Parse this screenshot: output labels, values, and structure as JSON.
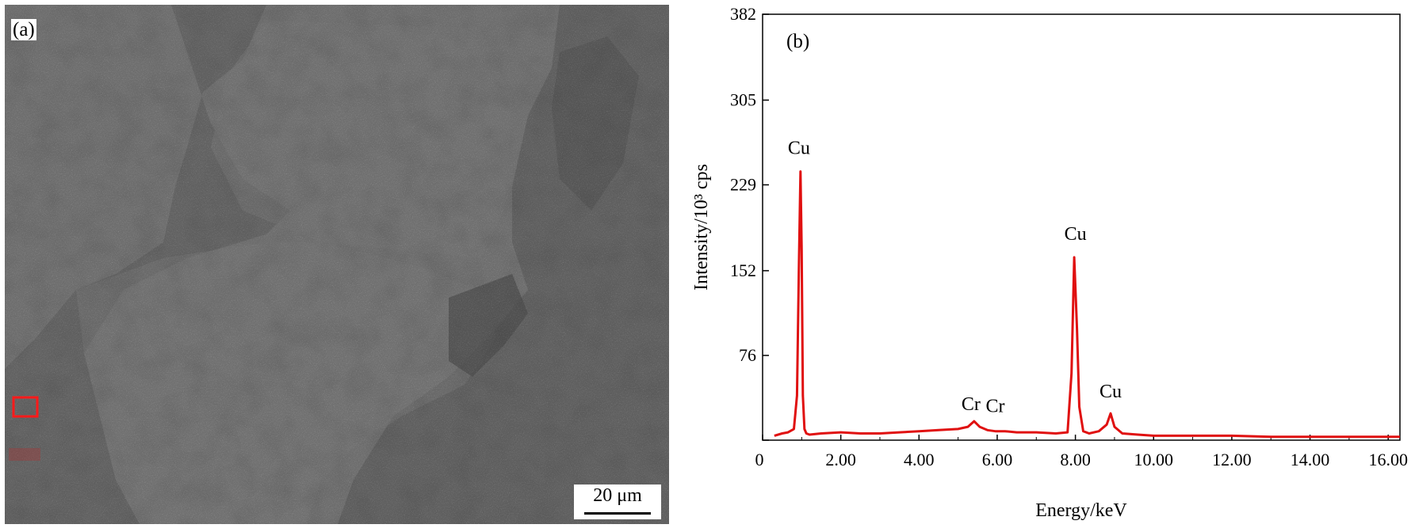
{
  "panel_a": {
    "label": "(a)",
    "scale_bar_text": "20 μm"
  },
  "colors": {
    "spectrum": "#e01010",
    "marker": "#ff1a1a",
    "sem_base": "#6b6b6b"
  },
  "chart_data": {
    "type": "line",
    "panel_label": "(b)",
    "title": "",
    "xlabel": "Energy/keV",
    "ylabel": "Intensity/10³ cps",
    "xlim": [
      0,
      16.3
    ],
    "ylim": [
      0,
      382
    ],
    "x_ticks": [
      0,
      2,
      4,
      6,
      8,
      10,
      12,
      14,
      16
    ],
    "x_tick_labels": [
      "0",
      "2.00",
      "4.00",
      "6.00",
      "8.00",
      "10.00",
      "12.00",
      "14.00",
      "16.00"
    ],
    "y_ticks": [
      0,
      76,
      152,
      229,
      305,
      382
    ],
    "y_tick_labels": [
      "0",
      "76",
      "152",
      "229",
      "305",
      "382"
    ],
    "grid": false,
    "series": [
      {
        "x": [
          0.3,
          0.5,
          0.65,
          0.8,
          0.88,
          0.93,
          0.97,
          1.0,
          1.03,
          1.07,
          1.12,
          1.2,
          1.5,
          2.0,
          2.5,
          3.0,
          3.5,
          4.0,
          4.5,
          5.0,
          5.25,
          5.41,
          5.55,
          5.75,
          5.95,
          6.2,
          6.5,
          7.0,
          7.5,
          7.8,
          7.9,
          7.97,
          8.04,
          8.1,
          8.2,
          8.35,
          8.6,
          8.8,
          8.9,
          9.0,
          9.2,
          9.6,
          10.0,
          11.0,
          12.0,
          13.0,
          14.0,
          15.0,
          16.0,
          16.3
        ],
        "y": [
          4,
          6,
          7,
          10,
          40,
          160,
          241,
          170,
          40,
          10,
          6,
          5,
          6,
          7,
          6,
          6,
          7,
          8,
          9,
          10,
          12,
          17,
          12,
          9,
          8,
          8,
          7,
          7,
          6,
          7,
          60,
          164,
          100,
          30,
          8,
          6,
          8,
          14,
          24,
          12,
          6,
          5,
          4,
          4,
          4,
          3,
          3,
          3,
          3,
          3
        ]
      }
    ],
    "annotations": [
      {
        "text": "Cu",
        "x": 0.93,
        "y": 241
      },
      {
        "text": "Cu",
        "x": 8.0,
        "y": 164
      },
      {
        "text": "Cr",
        "x": 5.41,
        "y": 17
      },
      {
        "text": "Cr",
        "x": 5.95,
        "y": 8
      },
      {
        "text": "Cu",
        "x": 8.9,
        "y": 24
      }
    ]
  }
}
